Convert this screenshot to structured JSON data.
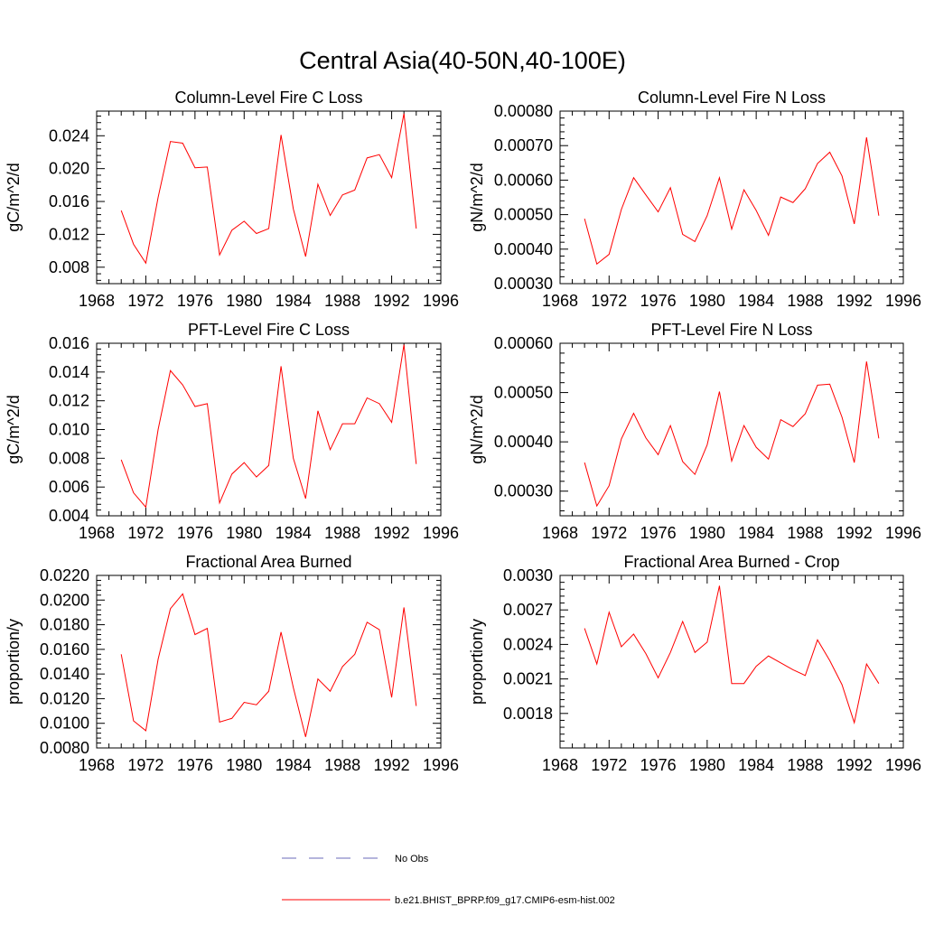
{
  "figure": {
    "title": "Central Asia(40-50N,40-100E)",
    "background": "#ffffff",
    "series_color": "#ff0000",
    "obs_color": "#6b6bb8"
  },
  "legend": {
    "entries": [
      {
        "label": "No Obs",
        "style": "dashed",
        "color": "#6b6bb8"
      },
      {
        "label": "b.e21.BHIST_BPRP.f09_g17.CMIP6-esm-hist.002",
        "style": "solid",
        "color": "#ff0000"
      }
    ]
  },
  "chart_data": [
    {
      "type": "line",
      "title": "Column-Level Fire C Loss",
      "xlabel": "",
      "ylabel": "gC/m^2/d",
      "xlim": [
        1968,
        1996
      ],
      "ylim": [
        0.006,
        0.027
      ],
      "xticks": [
        "1968",
        "1972",
        "1976",
        "1980",
        "1984",
        "1988",
        "1992",
        "1996"
      ],
      "yticks": [
        "0.008",
        "0.012",
        "0.016",
        "0.020",
        "0.024"
      ],
      "series": [
        {
          "name": "b.e21.BHIST_BPRP.f09_g17.CMIP6-esm-hist.002",
          "x": [
            1970,
            1971,
            1972,
            1973,
            1974,
            1975,
            1976,
            1977,
            1978,
            1979,
            1980,
            1981,
            1982,
            1983,
            1984,
            1985,
            1986,
            1987,
            1988,
            1989,
            1990,
            1991,
            1992,
            1993,
            1994
          ],
          "values": [
            0.0149,
            0.0108,
            0.0085,
            0.0165,
            0.0233,
            0.0231,
            0.0201,
            0.0202,
            0.0095,
            0.0125,
            0.0136,
            0.0121,
            0.0127,
            0.0241,
            0.0151,
            0.0093,
            0.0181,
            0.0143,
            0.0168,
            0.0174,
            0.0213,
            0.0217,
            0.0189,
            0.0267,
            0.0127
          ]
        }
      ]
    },
    {
      "type": "line",
      "title": "Column-Level Fire N Loss",
      "xlabel": "",
      "ylabel": "gN/m^2/d",
      "xlim": [
        1968,
        1996
      ],
      "ylim": [
        0.0003,
        0.0008
      ],
      "xticks": [
        "1968",
        "1972",
        "1976",
        "1980",
        "1984",
        "1988",
        "1992",
        "1996"
      ],
      "yticks": [
        "0.00030",
        "0.00040",
        "0.00050",
        "0.00060",
        "0.00070",
        "0.00080"
      ],
      "series": [
        {
          "name": "b.e21.BHIST_BPRP.f09_g17.CMIP6-esm-hist.002",
          "x": [
            1970,
            1971,
            1972,
            1973,
            1974,
            1975,
            1976,
            1977,
            1978,
            1979,
            1980,
            1981,
            1982,
            1983,
            1984,
            1985,
            1986,
            1987,
            1988,
            1989,
            1990,
            1991,
            1992,
            1993,
            1994
          ],
          "values": [
            0.000488,
            0.000357,
            0.000385,
            0.000515,
            0.000607,
            0.000557,
            0.000508,
            0.000578,
            0.000443,
            0.000422,
            0.000497,
            0.000607,
            0.000458,
            0.000572,
            0.000512,
            0.00044,
            0.000551,
            0.000535,
            0.000575,
            0.000648,
            0.000681,
            0.000612,
            0.000473,
            0.000724,
            0.000497
          ]
        }
      ]
    },
    {
      "type": "line",
      "title": "PFT-Level Fire C Loss",
      "xlabel": "",
      "ylabel": "gC/m^2/d",
      "xlim": [
        1968,
        1996
      ],
      "ylim": [
        0.004,
        0.016
      ],
      "xticks": [
        "1968",
        "1972",
        "1976",
        "1980",
        "1984",
        "1988",
        "1992",
        "1996"
      ],
      "yticks": [
        "0.004",
        "0.006",
        "0.008",
        "0.010",
        "0.012",
        "0.014",
        "0.016"
      ],
      "series": [
        {
          "name": "b.e21.BHIST_BPRP.f09_g17.CMIP6-esm-hist.002",
          "x": [
            1970,
            1971,
            1972,
            1973,
            1974,
            1975,
            1976,
            1977,
            1978,
            1979,
            1980,
            1981,
            1982,
            1983,
            1984,
            1985,
            1986,
            1987,
            1988,
            1989,
            1990,
            1991,
            1992,
            1993,
            1994
          ],
          "values": [
            0.0079,
            0.0056,
            0.0046,
            0.01,
            0.0141,
            0.0131,
            0.0116,
            0.0118,
            0.0049,
            0.0069,
            0.0077,
            0.0067,
            0.0075,
            0.0144,
            0.008,
            0.0052,
            0.0113,
            0.0086,
            0.0104,
            0.0104,
            0.0122,
            0.0118,
            0.0105,
            0.0159,
            0.0076
          ]
        }
      ]
    },
    {
      "type": "line",
      "title": "PFT-Level Fire N Loss",
      "xlabel": "",
      "ylabel": "gN/m^2/d",
      "xlim": [
        1968,
        1996
      ],
      "ylim": [
        0.00025,
        0.0006
      ],
      "xticks": [
        "1968",
        "1972",
        "1976",
        "1980",
        "1984",
        "1988",
        "1992",
        "1996"
      ],
      "yticks": [
        "0.00030",
        "0.00040",
        "0.00050",
        "0.00060"
      ],
      "series": [
        {
          "name": "b.e21.BHIST_BPRP.f09_g17.CMIP6-esm-hist.002",
          "x": [
            1970,
            1971,
            1972,
            1973,
            1974,
            1975,
            1976,
            1977,
            1978,
            1979,
            1980,
            1981,
            1982,
            1983,
            1984,
            1985,
            1986,
            1987,
            1988,
            1989,
            1990,
            1991,
            1992,
            1993,
            1994
          ],
          "values": [
            0.000358,
            0.00027,
            0.000311,
            0.000406,
            0.000458,
            0.000408,
            0.000374,
            0.000433,
            0.00036,
            0.000334,
            0.000394,
            0.000502,
            0.000361,
            0.000433,
            0.000389,
            0.000365,
            0.000445,
            0.000431,
            0.000457,
            0.000515,
            0.000517,
            0.00045,
            0.000358,
            0.000563,
            0.000407
          ]
        }
      ]
    },
    {
      "type": "line",
      "title": "Fractional Area Burned",
      "xlabel": "",
      "ylabel": "proportion/y",
      "xlim": [
        1968,
        1996
      ],
      "ylim": [
        0.008,
        0.022
      ],
      "xticks": [
        "1968",
        "1972",
        "1976",
        "1980",
        "1984",
        "1988",
        "1992",
        "1996"
      ],
      "yticks": [
        "0.0080",
        "0.0100",
        "0.0120",
        "0.0140",
        "0.0160",
        "0.0180",
        "0.0200",
        "0.0220"
      ],
      "series": [
        {
          "name": "b.e21.BHIST_BPRP.f09_g17.CMIP6-esm-hist.002",
          "x": [
            1970,
            1971,
            1972,
            1973,
            1974,
            1975,
            1976,
            1977,
            1978,
            1979,
            1980,
            1981,
            1982,
            1983,
            1984,
            1985,
            1986,
            1987,
            1988,
            1989,
            1990,
            1991,
            1992,
            1993,
            1994
          ],
          "values": [
            0.0156,
            0.0102,
            0.0094,
            0.0152,
            0.0193,
            0.0205,
            0.0172,
            0.0177,
            0.0101,
            0.0104,
            0.0117,
            0.0115,
            0.0126,
            0.0174,
            0.0129,
            0.0089,
            0.0136,
            0.0126,
            0.0146,
            0.0156,
            0.0182,
            0.0176,
            0.0121,
            0.0194,
            0.0114
          ]
        }
      ]
    },
    {
      "type": "line",
      "title": "Fractional Area Burned - Crop",
      "xlabel": "",
      "ylabel": "proportion/y",
      "xlim": [
        1968,
        1996
      ],
      "ylim": [
        0.0015,
        0.003
      ],
      "xticks": [
        "1968",
        "1972",
        "1976",
        "1980",
        "1984",
        "1988",
        "1992",
        "1996"
      ],
      "yticks": [
        "0.0018",
        "0.0021",
        "0.0024",
        "0.0027",
        "0.0030"
      ],
      "series": [
        {
          "name": "b.e21.BHIST_BPRP.f09_g17.CMIP6-esm-hist.002",
          "x": [
            1970,
            1971,
            1972,
            1973,
            1974,
            1975,
            1976,
            1977,
            1978,
            1979,
            1980,
            1981,
            1982,
            1983,
            1984,
            1985,
            1986,
            1987,
            1988,
            1989,
            1990,
            1991,
            1992,
            1993,
            1994
          ],
          "values": [
            0.00254,
            0.00223,
            0.00268,
            0.00238,
            0.00249,
            0.00232,
            0.00211,
            0.00233,
            0.0026,
            0.00233,
            0.00242,
            0.00291,
            0.00206,
            0.00206,
            0.00221,
            0.0023,
            0.00224,
            0.00218,
            0.00213,
            0.00244,
            0.00226,
            0.00205,
            0.00172,
            0.00223,
            0.00206
          ]
        }
      ]
    }
  ]
}
